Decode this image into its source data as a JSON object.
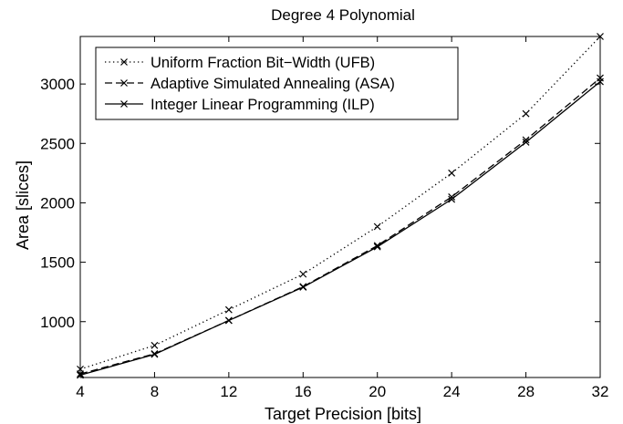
{
  "chart_data": {
    "type": "line",
    "title": "Degree 4 Polynomial",
    "xlabel": "Target Precision [bits]",
    "ylabel": "Area [slices]",
    "xlim": [
      4,
      32
    ],
    "ylim": [
      530,
      3400
    ],
    "x_ticks": [
      4,
      8,
      12,
      16,
      20,
      24,
      28,
      32
    ],
    "y_ticks": [
      1000,
      1500,
      2000,
      2500,
      3000
    ],
    "grid": false,
    "legend_position": "top-left",
    "x": [
      4,
      8,
      12,
      16,
      20,
      24,
      28,
      32
    ],
    "series": [
      {
        "name": "Uniform Fraction Bit−Width (UFB)",
        "line_style": "dotted",
        "marker": "x",
        "color": "#000000",
        "values": [
          600,
          800,
          1100,
          1400,
          1800,
          2250,
          2750,
          3400
        ]
      },
      {
        "name": "Adaptive Simulated Annealing (ASA)",
        "line_style": "dashed",
        "marker": "x",
        "color": "#000000",
        "values": [
          560,
          730,
          1010,
          1295,
          1640,
          2050,
          2530,
          3050
        ]
      },
      {
        "name": "Integer Linear Programming (ILP)",
        "line_style": "solid",
        "marker": "x",
        "color": "#000000",
        "values": [
          550,
          725,
          1010,
          1290,
          1630,
          2030,
          2510,
          3020
        ]
      }
    ]
  }
}
